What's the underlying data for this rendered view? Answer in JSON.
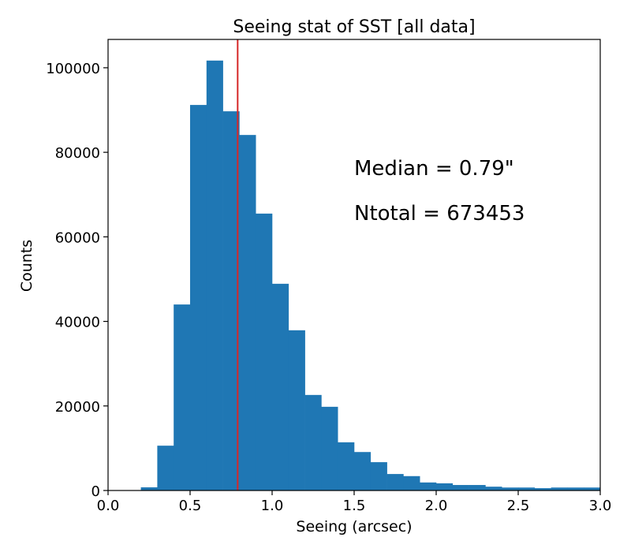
{
  "chart_data": {
    "type": "bar",
    "title": "Seeing stat of SST [all data]",
    "xlabel": "Seeing (arcsec)",
    "ylabel": "Counts",
    "xlim": [
      0.0,
      3.0
    ],
    "ylim": [
      0,
      106700
    ],
    "bin_width": 0.1,
    "bin_starts": [
      0.2,
      0.3,
      0.4,
      0.5,
      0.6,
      0.7,
      0.8,
      0.9,
      1.0,
      1.1,
      1.2,
      1.3,
      1.4,
      1.5,
      1.6,
      1.7,
      1.8,
      1.9,
      2.0,
      2.1,
      2.2,
      2.3,
      2.4,
      2.5,
      2.6,
      2.7,
      2.8,
      2.9
    ],
    "values": [
      750,
      10600,
      44000,
      91200,
      101700,
      89700,
      84100,
      65500,
      48900,
      37900,
      22600,
      19800,
      11400,
      9100,
      6700,
      3900,
      3400,
      1900,
      1700,
      1300,
      1300,
      900,
      700,
      700,
      550,
      700,
      700,
      700
    ],
    "xticks": [
      "0.0",
      "0.5",
      "1.0",
      "1.5",
      "2.0",
      "2.5",
      "3.0"
    ],
    "xtick_values": [
      0,
      0.5,
      1.0,
      1.5,
      2.0,
      2.5,
      3.0
    ],
    "yticks": [
      "0",
      "20000",
      "40000",
      "60000",
      "80000",
      "100000"
    ],
    "ytick_values": [
      0,
      20000,
      40000,
      60000,
      80000,
      100000
    ],
    "median_line": {
      "x": 0.79,
      "color": "#d62728"
    },
    "bar_color": "#1f77b4",
    "annotations": [
      "Median = 0.79\"",
      "Ntotal = 673453"
    ],
    "grid": false,
    "legend": "none"
  }
}
